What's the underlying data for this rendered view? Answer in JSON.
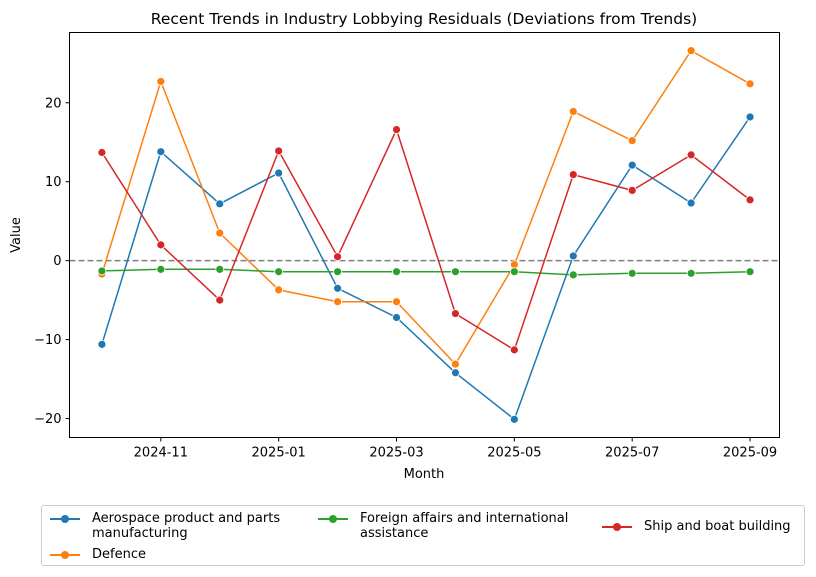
{
  "chart_data": {
    "type": "line",
    "title": "Recent Trends in Industry Lobbying Residuals (Deviations from Trends)",
    "xlabel": "Month",
    "ylabel": "Value",
    "x": [
      "2024-10",
      "2024-11",
      "2024-12",
      "2025-01",
      "2025-02",
      "2025-03",
      "2025-04",
      "2025-05",
      "2025-06",
      "2025-07",
      "2025-08",
      "2025-09"
    ],
    "x_ticks": [
      "2024-11",
      "2025-01",
      "2025-03",
      "2025-05",
      "2025-07",
      "2025-09"
    ],
    "y_ticks": [
      -20,
      -10,
      0,
      10,
      20
    ],
    "ylim": [
      -22.4,
      28.9
    ],
    "reference_line": {
      "y": 0,
      "style": "dashed",
      "color": "#808080"
    },
    "grid": false,
    "legend_placement": "bottom-center, below plot",
    "series": [
      {
        "name": "Aerospace product and parts manufacturing",
        "color": "#1f77b4",
        "values": [
          -10.6,
          13.8,
          7.2,
          11.1,
          -3.5,
          -7.2,
          -14.2,
          -20.1,
          0.6,
          12.1,
          7.3,
          18.2
        ]
      },
      {
        "name": "Defence",
        "color": "#ff7f0e",
        "values": [
          -1.7,
          22.7,
          3.5,
          -3.7,
          -5.2,
          -5.2,
          -13.1,
          -0.5,
          18.9,
          15.2,
          26.6,
          22.4
        ]
      },
      {
        "name": "Foreign affairs and international assistance",
        "color": "#2ca02c",
        "values": [
          -1.3,
          -1.1,
          -1.1,
          -1.4,
          -1.4,
          -1.4,
          -1.4,
          -1.4,
          -1.8,
          -1.6,
          -1.6,
          -1.4
        ]
      },
      {
        "name": "Ship and boat building",
        "color": "#d62728",
        "values": [
          13.7,
          2.0,
          -5.0,
          13.9,
          0.5,
          16.6,
          -6.7,
          -11.3,
          10.9,
          8.9,
          13.4,
          7.7
        ]
      }
    ]
  },
  "legend": {
    "aero_l1": "Aerospace product and parts",
    "aero_l2": "manufacturing",
    "defence": "Defence",
    "foreign_l1": "Foreign affairs and international",
    "foreign_l2": "assistance",
    "ship": "Ship and boat building"
  }
}
